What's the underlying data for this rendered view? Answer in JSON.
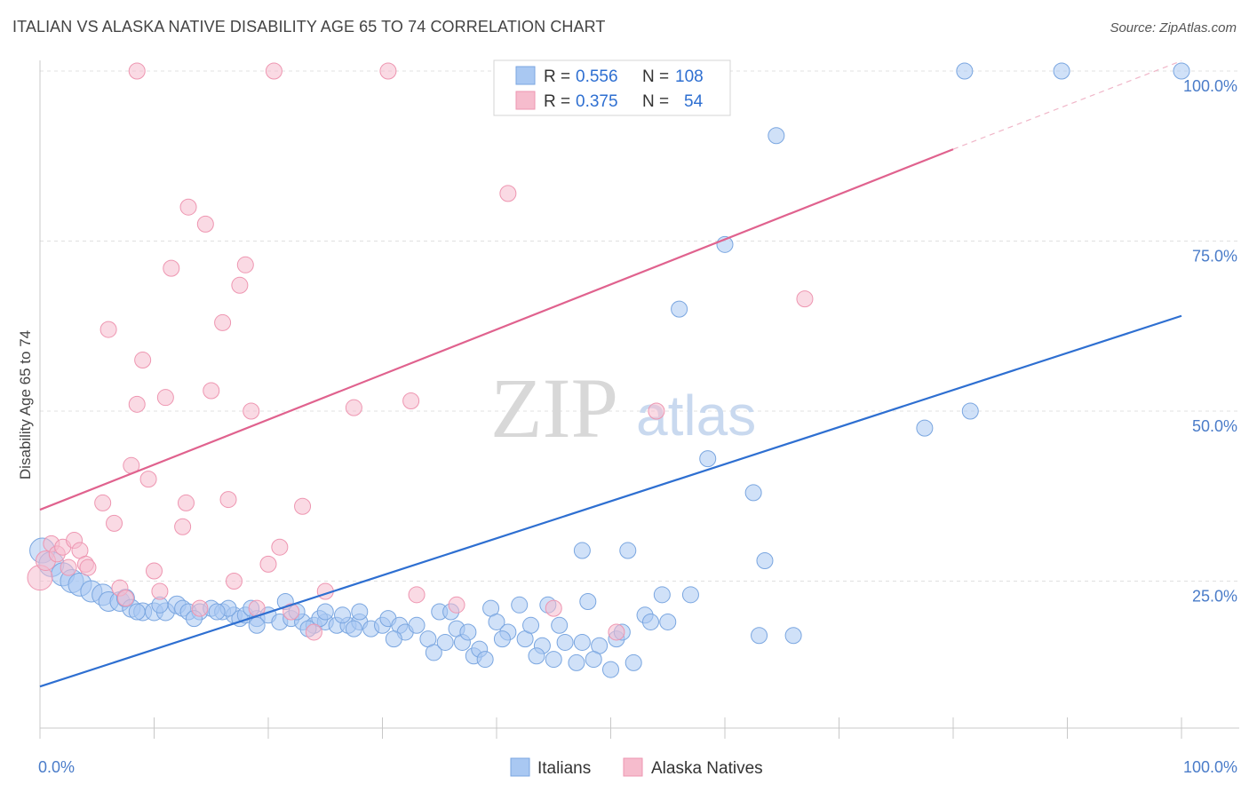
{
  "header": {
    "title": "ITALIAN VS ALASKA NATIVE DISABILITY AGE 65 TO 74 CORRELATION CHART",
    "source": "Source: ZipAtlas.com"
  },
  "watermark": {
    "zip": "ZIP",
    "atlas": "atlas"
  },
  "colors": {
    "italians_fill": "#a9c8f2",
    "italians_stroke": "#7aa6e0",
    "italians_line": "#2e6fd1",
    "alaska_fill": "#f6bccd",
    "alaska_stroke": "#ee96b1",
    "alaska_line": "#e0628e",
    "tick_text": "#4a7cc9",
    "grid": "#e0e0e0"
  },
  "legend_top": {
    "rows": [
      {
        "r_label": "R = ",
        "r_value": "0.556",
        "n_label": "N = ",
        "n_value": "108"
      },
      {
        "r_label": "R = ",
        "r_value": "0.375",
        "n_label": "N = ",
        "n_value": "54"
      }
    ]
  },
  "chart_data": {
    "type": "scatter",
    "title": "ITALIAN VS ALASKA NATIVE DISABILITY AGE 65 TO 74 CORRELATION CHART",
    "xlabel": "",
    "ylabel": "Disability Age 65 to 74",
    "xlim": [
      0,
      100
    ],
    "ylim": [
      5,
      102
    ],
    "x_tick_labels": [
      "0.0%",
      "100.0%"
    ],
    "y_ticks": [
      25,
      50,
      75,
      100
    ],
    "y_tick_labels": [
      "25.0%",
      "50.0%",
      "75.0%",
      "100.0%"
    ],
    "grid": true,
    "legend_position": "bottom",
    "series": [
      {
        "name": "Italians",
        "color": "#a9c8f2",
        "trend": {
          "x": [
            0,
            100
          ],
          "y": [
            9.5,
            64
          ]
        },
        "points": [
          {
            "x": 0.2,
            "y": 29.5,
            "r": 14
          },
          {
            "x": 1,
            "y": 27.5,
            "r": 14
          },
          {
            "x": 2,
            "y": 26,
            "r": 13
          },
          {
            "x": 2.8,
            "y": 25,
            "r": 13
          },
          {
            "x": 3.5,
            "y": 24.5,
            "r": 13
          },
          {
            "x": 4.5,
            "y": 23.5,
            "r": 12
          },
          {
            "x": 5.5,
            "y": 23,
            "r": 12
          },
          {
            "x": 6,
            "y": 22,
            "r": 11
          },
          {
            "x": 7,
            "y": 22,
            "r": 11
          },
          {
            "x": 7.5,
            "y": 22.5,
            "r": 10
          },
          {
            "x": 8,
            "y": 21,
            "r": 10
          },
          {
            "x": 9,
            "y": 20.5,
            "r": 10
          },
          {
            "x": 10,
            "y": 20.5,
            "r": 10
          },
          {
            "x": 11,
            "y": 20.5,
            "r": 10
          },
          {
            "x": 12,
            "y": 21.5,
            "r": 10
          },
          {
            "x": 12.5,
            "y": 21,
            "r": 9
          },
          {
            "x": 13,
            "y": 20.5,
            "r": 9
          },
          {
            "x": 14,
            "y": 20.5,
            "r": 9
          },
          {
            "x": 15,
            "y": 21,
            "r": 9
          },
          {
            "x": 16,
            "y": 20.5,
            "r": 9
          },
          {
            "x": 17,
            "y": 20,
            "r": 9
          },
          {
            "x": 17.5,
            "y": 19.5,
            "r": 9
          },
          {
            "x": 18,
            "y": 20,
            "r": 9
          },
          {
            "x": 19,
            "y": 19.5,
            "r": 9
          },
          {
            "x": 20,
            "y": 20,
            "r": 9
          },
          {
            "x": 21,
            "y": 19,
            "r": 9
          },
          {
            "x": 22,
            "y": 19.5,
            "r": 9
          },
          {
            "x": 23,
            "y": 19,
            "r": 9
          },
          {
            "x": 24,
            "y": 18.5,
            "r": 9
          },
          {
            "x": 25,
            "y": 19,
            "r": 9
          },
          {
            "x": 26,
            "y": 18.5,
            "r": 9
          },
          {
            "x": 27,
            "y": 18.5,
            "r": 9
          },
          {
            "x": 28,
            "y": 19,
            "r": 9
          },
          {
            "x": 29,
            "y": 18,
            "r": 9
          },
          {
            "x": 30,
            "y": 18.5,
            "r": 9
          },
          {
            "x": 13.5,
            "y": 19.5,
            "r": 9
          },
          {
            "x": 16.5,
            "y": 21,
            "r": 9
          },
          {
            "x": 19,
            "y": 18.5,
            "r": 9
          },
          {
            "x": 21.5,
            "y": 22,
            "r": 9
          },
          {
            "x": 22.5,
            "y": 20.5,
            "r": 9
          },
          {
            "x": 24.5,
            "y": 19.5,
            "r": 9
          },
          {
            "x": 27.5,
            "y": 18,
            "r": 9
          },
          {
            "x": 28,
            "y": 20.5,
            "r": 9
          },
          {
            "x": 30.5,
            "y": 19.5,
            "r": 9
          },
          {
            "x": 31.5,
            "y": 18.5,
            "r": 9
          },
          {
            "x": 32,
            "y": 17.5,
            "r": 9
          },
          {
            "x": 33,
            "y": 18.5,
            "r": 9
          },
          {
            "x": 34,
            "y": 16.5,
            "r": 9
          },
          {
            "x": 34.5,
            "y": 14.5,
            "r": 9
          },
          {
            "x": 35,
            "y": 20.5,
            "r": 9
          },
          {
            "x": 36,
            "y": 20.5,
            "r": 9
          },
          {
            "x": 36.5,
            "y": 18,
            "r": 9
          },
          {
            "x": 37,
            "y": 16,
            "r": 9
          },
          {
            "x": 37.5,
            "y": 17.5,
            "r": 9
          },
          {
            "x": 38,
            "y": 14,
            "r": 9
          },
          {
            "x": 38.5,
            "y": 15,
            "r": 9
          },
          {
            "x": 39,
            "y": 13.5,
            "r": 9
          },
          {
            "x": 39.5,
            "y": 21,
            "r": 9
          },
          {
            "x": 40,
            "y": 19,
            "r": 9
          },
          {
            "x": 41,
            "y": 17.5,
            "r": 9
          },
          {
            "x": 42,
            "y": 21.5,
            "r": 9
          },
          {
            "x": 42.5,
            "y": 16.5,
            "r": 9
          },
          {
            "x": 43,
            "y": 18.5,
            "r": 9
          },
          {
            "x": 44,
            "y": 15.5,
            "r": 9
          },
          {
            "x": 44.5,
            "y": 21.5,
            "r": 9
          },
          {
            "x": 45,
            "y": 13.5,
            "r": 9
          },
          {
            "x": 46,
            "y": 16,
            "r": 9
          },
          {
            "x": 47,
            "y": 13,
            "r": 9
          },
          {
            "x": 47.5,
            "y": 16,
            "r": 9
          },
          {
            "x": 48,
            "y": 22,
            "r": 9
          },
          {
            "x": 49,
            "y": 15.5,
            "r": 9
          },
          {
            "x": 50,
            "y": 12,
            "r": 9
          },
          {
            "x": 50.5,
            "y": 16.5,
            "r": 9
          },
          {
            "x": 52,
            "y": 13,
            "r": 9
          },
          {
            "x": 53,
            "y": 20,
            "r": 9
          },
          {
            "x": 53.5,
            "y": 19,
            "r": 9
          },
          {
            "x": 54.5,
            "y": 23,
            "r": 9
          },
          {
            "x": 55,
            "y": 19,
            "r": 9
          },
          {
            "x": 47.5,
            "y": 29.5,
            "r": 9
          },
          {
            "x": 51.5,
            "y": 29.5,
            "r": 9
          },
          {
            "x": 57,
            "y": 23,
            "r": 9
          },
          {
            "x": 51,
            "y": 17.5,
            "r": 9
          },
          {
            "x": 58.5,
            "y": 43,
            "r": 9
          },
          {
            "x": 62.5,
            "y": 38,
            "r": 9
          },
          {
            "x": 63.5,
            "y": 28,
            "r": 9
          },
          {
            "x": 63,
            "y": 17,
            "r": 9
          },
          {
            "x": 66,
            "y": 17,
            "r": 9
          },
          {
            "x": 56,
            "y": 65,
            "r": 9
          },
          {
            "x": 60,
            "y": 74.5,
            "r": 9
          },
          {
            "x": 64.5,
            "y": 90.5,
            "r": 9
          },
          {
            "x": 81,
            "y": 100,
            "r": 9
          },
          {
            "x": 89.5,
            "y": 100,
            "r": 9
          },
          {
            "x": 100,
            "y": 100,
            "r": 9
          },
          {
            "x": 81.5,
            "y": 50,
            "r": 9
          },
          {
            "x": 77.5,
            "y": 47.5,
            "r": 9
          },
          {
            "x": 25,
            "y": 20.5,
            "r": 9
          },
          {
            "x": 15.5,
            "y": 20.5,
            "r": 9
          },
          {
            "x": 18.5,
            "y": 21,
            "r": 9
          },
          {
            "x": 10.5,
            "y": 21.5,
            "r": 9
          },
          {
            "x": 8.5,
            "y": 20.5,
            "r": 9
          },
          {
            "x": 23.5,
            "y": 18,
            "r": 9
          },
          {
            "x": 26.5,
            "y": 20,
            "r": 9
          },
          {
            "x": 31,
            "y": 16.5,
            "r": 9
          },
          {
            "x": 35.5,
            "y": 16,
            "r": 9
          },
          {
            "x": 40.5,
            "y": 16.5,
            "r": 9
          },
          {
            "x": 43.5,
            "y": 14,
            "r": 9
          },
          {
            "x": 45.5,
            "y": 18.5,
            "r": 9
          },
          {
            "x": 48.5,
            "y": 13.5,
            "r": 9
          }
        ]
      },
      {
        "name": "Alaska Natives",
        "color": "#f6bccd",
        "trend": {
          "x": [
            0,
            80
          ],
          "y": [
            35.5,
            88.5
          ],
          "dashed_extension": {
            "x": [
              80,
              100
            ],
            "y": [
              88.5,
              101.5
            ]
          }
        },
        "points": [
          {
            "x": 0,
            "y": 25.5,
            "r": 14
          },
          {
            "x": 0.5,
            "y": 28,
            "r": 11
          },
          {
            "x": 1,
            "y": 30.5,
            "r": 9
          },
          {
            "x": 1.5,
            "y": 29,
            "r": 9
          },
          {
            "x": 2,
            "y": 30,
            "r": 9
          },
          {
            "x": 2.5,
            "y": 27,
            "r": 9
          },
          {
            "x": 3,
            "y": 31,
            "r": 9
          },
          {
            "x": 3.5,
            "y": 29.5,
            "r": 9
          },
          {
            "x": 4,
            "y": 27.5,
            "r": 9
          },
          {
            "x": 5.5,
            "y": 36.5,
            "r": 9
          },
          {
            "x": 6,
            "y": 62,
            "r": 9
          },
          {
            "x": 6.5,
            "y": 33.5,
            "r": 9
          },
          {
            "x": 7,
            "y": 24,
            "r": 9
          },
          {
            "x": 7.5,
            "y": 22.5,
            "r": 9
          },
          {
            "x": 8,
            "y": 42,
            "r": 9
          },
          {
            "x": 8.5,
            "y": 51,
            "r": 9
          },
          {
            "x": 9,
            "y": 57.5,
            "r": 9
          },
          {
            "x": 9.5,
            "y": 40,
            "r": 9
          },
          {
            "x": 10,
            "y": 26.5,
            "r": 9
          },
          {
            "x": 10.5,
            "y": 23.5,
            "r": 9
          },
          {
            "x": 11,
            "y": 52,
            "r": 9
          },
          {
            "x": 11.5,
            "y": 71,
            "r": 9
          },
          {
            "x": 12.5,
            "y": 33,
            "r": 9
          },
          {
            "x": 12.8,
            "y": 36.5,
            "r": 9
          },
          {
            "x": 13,
            "y": 80,
            "r": 9
          },
          {
            "x": 14,
            "y": 21,
            "r": 9
          },
          {
            "x": 14.5,
            "y": 77.5,
            "r": 9
          },
          {
            "x": 15,
            "y": 53,
            "r": 9
          },
          {
            "x": 16,
            "y": 63,
            "r": 9
          },
          {
            "x": 16.5,
            "y": 37,
            "r": 9
          },
          {
            "x": 17,
            "y": 25,
            "r": 9
          },
          {
            "x": 17.5,
            "y": 68.5,
            "r": 9
          },
          {
            "x": 18,
            "y": 71.5,
            "r": 9
          },
          {
            "x": 18.5,
            "y": 50,
            "r": 9
          },
          {
            "x": 19,
            "y": 21,
            "r": 9
          },
          {
            "x": 20,
            "y": 27.5,
            "r": 9
          },
          {
            "x": 21,
            "y": 30,
            "r": 9
          },
          {
            "x": 22,
            "y": 20.5,
            "r": 9
          },
          {
            "x": 23,
            "y": 36,
            "r": 9
          },
          {
            "x": 24,
            "y": 17.5,
            "r": 9
          },
          {
            "x": 25,
            "y": 23.5,
            "r": 9
          },
          {
            "x": 27.5,
            "y": 50.5,
            "r": 9
          },
          {
            "x": 32.5,
            "y": 51.5,
            "r": 9
          },
          {
            "x": 33,
            "y": 23,
            "r": 9
          },
          {
            "x": 36.5,
            "y": 21.5,
            "r": 9
          },
          {
            "x": 41,
            "y": 82,
            "r": 9
          },
          {
            "x": 45,
            "y": 21,
            "r": 9
          },
          {
            "x": 50.5,
            "y": 17.5,
            "r": 9
          },
          {
            "x": 54,
            "y": 50,
            "r": 9
          },
          {
            "x": 8.5,
            "y": 100,
            "r": 9
          },
          {
            "x": 20.5,
            "y": 100,
            "r": 9
          },
          {
            "x": 30.5,
            "y": 100,
            "r": 9
          },
          {
            "x": 67,
            "y": 66.5,
            "r": 9
          },
          {
            "x": 4.2,
            "y": 27,
            "r": 9
          }
        ]
      }
    ]
  }
}
